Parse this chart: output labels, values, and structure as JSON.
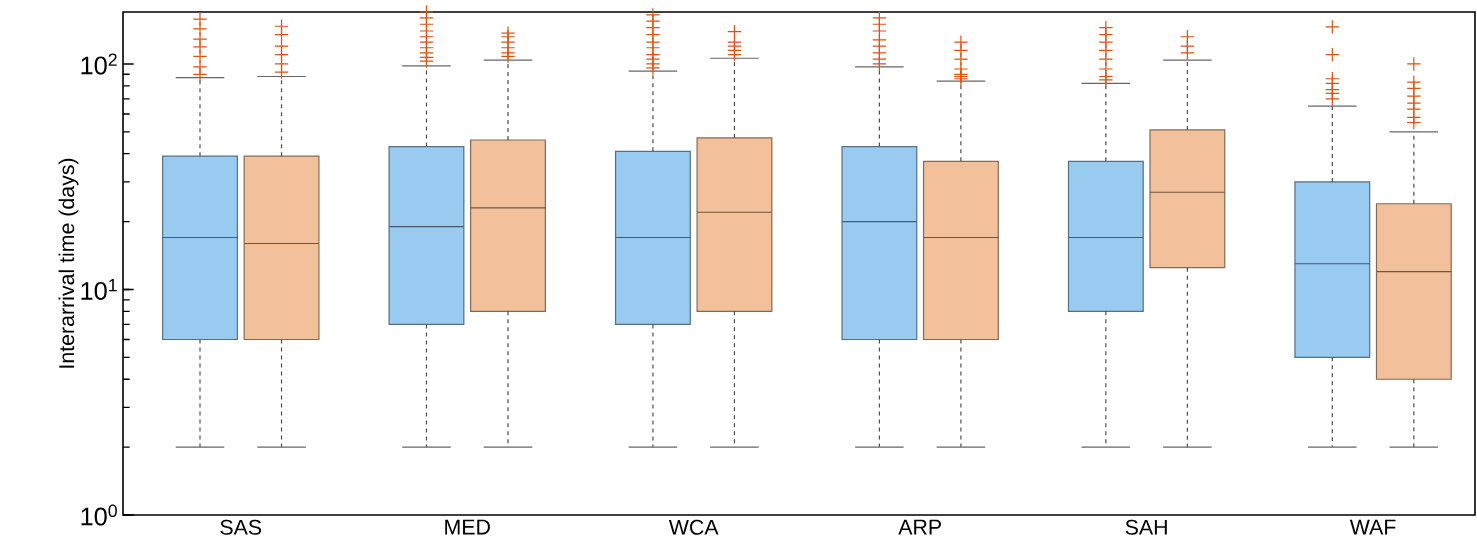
{
  "chart_data": {
    "type": "box",
    "ylabel": "Interarrival time (days)",
    "log": true,
    "grid": false,
    "categories": [
      "SAS",
      "MED",
      "WCA",
      "ARP",
      "SAH",
      "WAF"
    ],
    "ylim": [
      1,
      170
    ],
    "yticks": [
      {
        "value": 1,
        "label": "10$^{0}$"
      },
      {
        "value": 10,
        "label": "10$^{1}$"
      },
      {
        "value": 100,
        "label": "10$^{2}$"
      }
    ],
    "series": [
      {
        "color": "#99cbf1",
        "boxes": [
          {
            "low": 2,
            "q1": 6,
            "median": 17,
            "q3": 39,
            "high": 87,
            "outliers": [
              90,
              97,
              108,
              119,
              129,
              143,
              158
            ]
          },
          {
            "low": 2,
            "q1": 7,
            "median": 19,
            "q3": 43,
            "high": 98,
            "outliers": [
              103,
              107,
              112,
              118,
              125,
              132,
              140,
              150,
              160,
              170
            ]
          },
          {
            "low": 2,
            "q1": 7,
            "median": 17,
            "q3": 41,
            "high": 93,
            "outliers": [
              96,
              100,
              105,
              110,
              118,
              125,
              135,
              145,
              155,
              165
            ]
          },
          {
            "low": 2,
            "q1": 6,
            "median": 20,
            "q3": 43,
            "high": 97,
            "outliers": [
              100,
              105,
              112,
              120,
              128,
              140,
              150,
              160
            ]
          },
          {
            "low": 2,
            "q1": 8,
            "median": 17,
            "q3": 37,
            "high": 82,
            "outliers": [
              85,
              88,
              95,
              105,
              115,
              125,
              135,
              145
            ]
          },
          {
            "low": 2,
            "q1": 5,
            "median": 13,
            "q3": 30,
            "high": 65,
            "outliers": [
              70,
              74,
              77,
              82,
              86,
              110,
              146
            ]
          }
        ]
      },
      {
        "color": "#f2c09a",
        "boxes": [
          {
            "low": 2,
            "q1": 6,
            "median": 16,
            "q3": 39,
            "high": 88,
            "outliers": [
              92,
              100,
              110,
              120,
              135,
              147
            ]
          },
          {
            "low": 2,
            "q1": 8,
            "median": 23,
            "q3": 46,
            "high": 104,
            "outliers": [
              108,
              112,
              118,
              125,
              132,
              137
            ]
          },
          {
            "low": 2,
            "q1": 8,
            "median": 22,
            "q3": 47,
            "high": 106,
            "outliers": [
              110,
              115,
              120,
              125,
              139
            ]
          },
          {
            "low": 2,
            "q1": 6,
            "median": 17,
            "q3": 37,
            "high": 84,
            "outliers": [
              86,
              88,
              90,
              95,
              105,
              115,
              125
            ]
          },
          {
            "low": 2,
            "q1": 12.5,
            "median": 27,
            "q3": 51,
            "high": 104,
            "outliers": [
              112,
              120,
              132
            ]
          },
          {
            "low": 2,
            "q1": 4,
            "median": 12,
            "q3": 24,
            "high": 50,
            "outliers": [
              55,
              58,
              63,
              67,
              72,
              78,
              83,
              100
            ]
          }
        ]
      }
    ]
  }
}
